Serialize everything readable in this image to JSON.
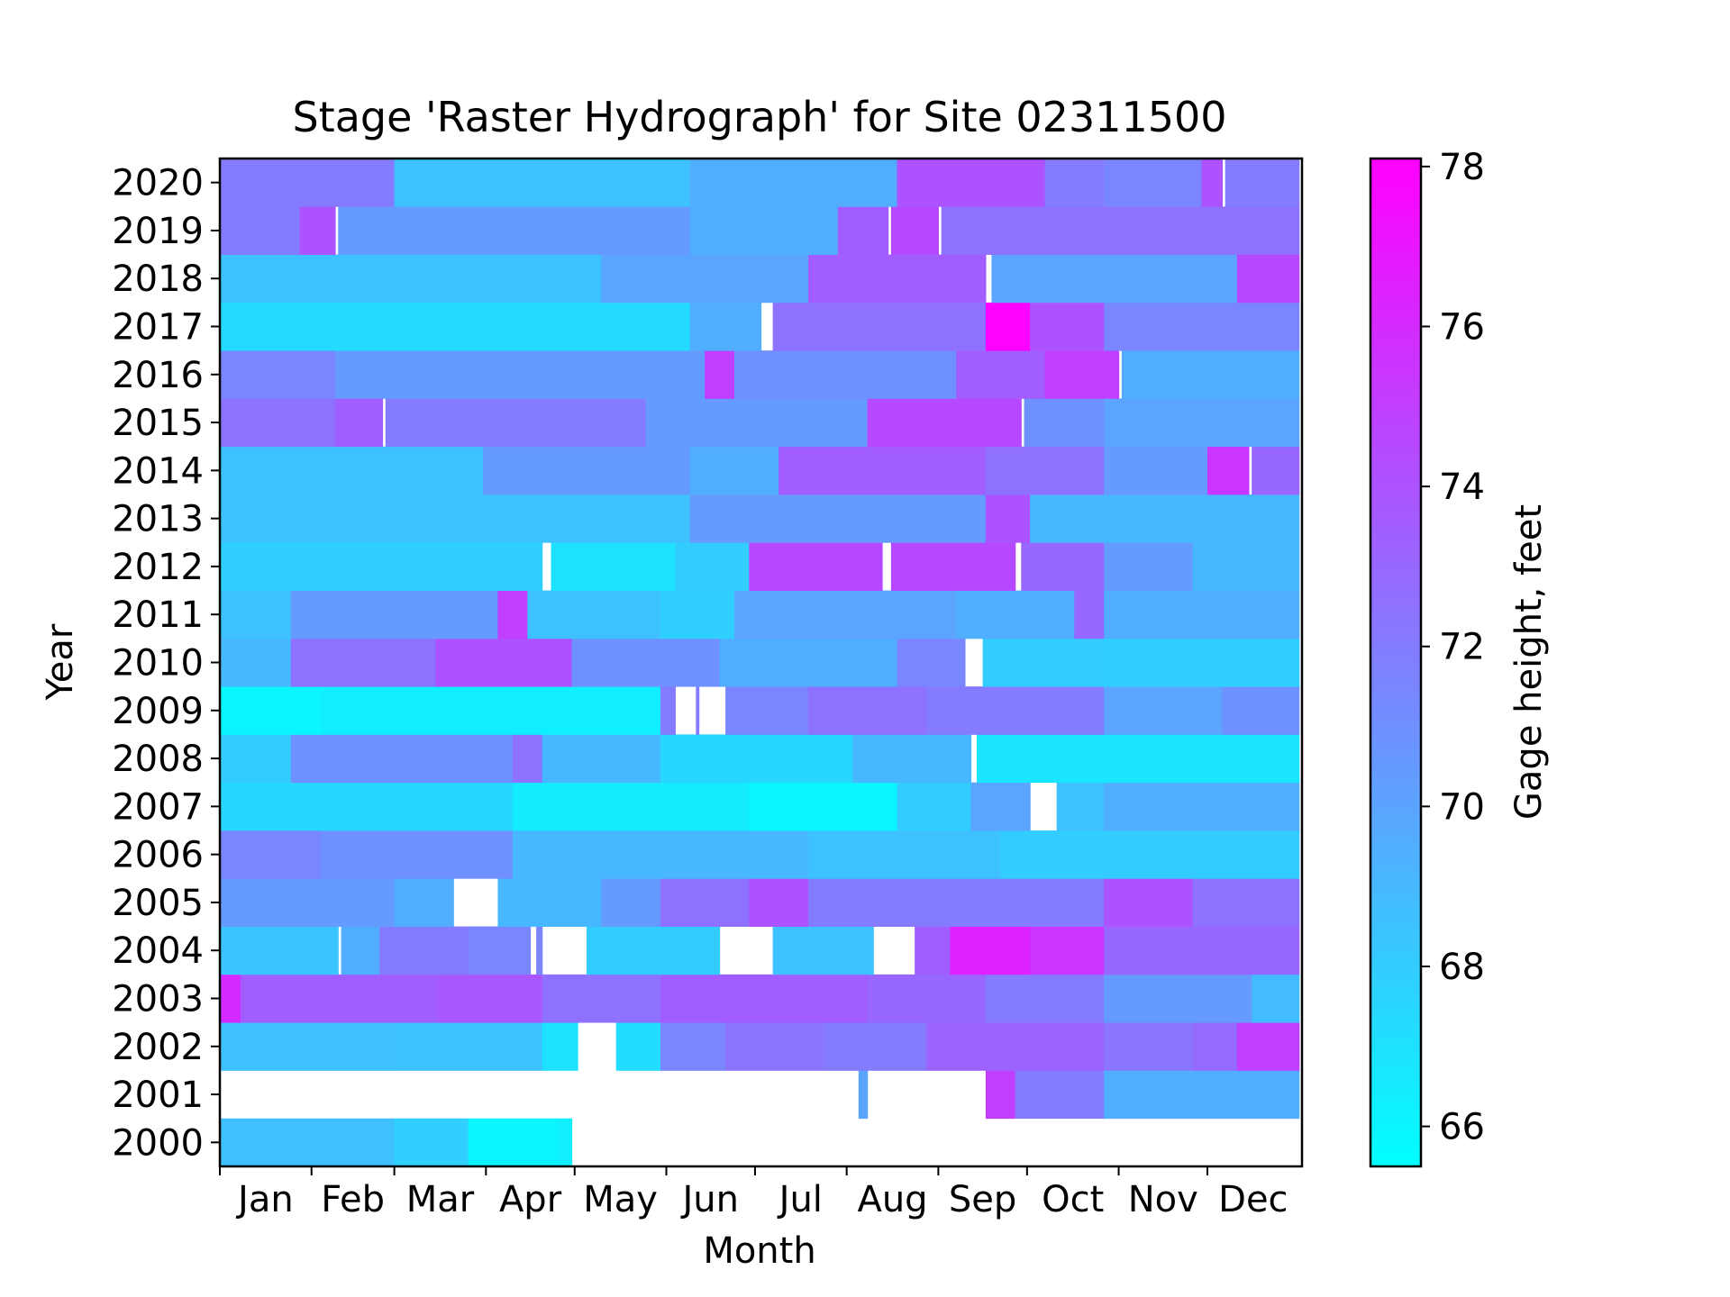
{
  "chart_data": {
    "type": "heatmap",
    "title": "Stage 'Raster Hydrograph' for Site 02311500",
    "xlabel": "Month",
    "ylabel": "Year",
    "colorbar_label": "Gage height, feet",
    "x_tick_labels": [
      "Jan",
      "Feb",
      "Mar",
      "Apr",
      "May",
      "Jun",
      "Jul",
      "Aug",
      "Sep",
      "Oct",
      "Nov",
      "Dec"
    ],
    "years": [
      2000,
      2001,
      2002,
      2003,
      2004,
      2005,
      2006,
      2007,
      2008,
      2009,
      2010,
      2011,
      2012,
      2013,
      2014,
      2015,
      2016,
      2017,
      2018,
      2019,
      2020
    ],
    "colorbar_ticks": [
      66,
      68,
      70,
      72,
      74,
      76,
      78
    ],
    "colorbar_range": [
      65.5,
      78.1
    ],
    "colormap": "cool",
    "colormap_start": "#00ffff",
    "colormap_end": "#ff00ff",
    "gaps_shown_as": "white",
    "value_grid_note": "segments: [start_day_of_year, end_day_of_year, gage_height_ft] (missing data omitted)",
    "rows": {
      "2000": [
        [
          1,
          60,
          68.6
        ],
        [
          60,
          85,
          67.8
        ],
        [
          85,
          115,
          66.0
        ],
        [
          115,
          120,
          66.3
        ]
      ],
      "2001": [
        [
          217,
          220,
          70.0
        ],
        [
          260,
          270,
          75.0
        ],
        [
          270,
          300,
          72.0
        ],
        [
          300,
          366,
          69.5
        ]
      ],
      "2002": [
        [
          1,
          60,
          68.6
        ],
        [
          60,
          110,
          68.5
        ],
        [
          110,
          122,
          67.0
        ],
        [
          135,
          150,
          67.2
        ],
        [
          150,
          172,
          71.5
        ],
        [
          172,
          205,
          72.4
        ],
        [
          205,
          240,
          72.0
        ],
        [
          240,
          300,
          73.2
        ],
        [
          300,
          330,
          72.3
        ],
        [
          330,
          345,
          72.8
        ],
        [
          345,
          366,
          75.0
        ]
      ],
      "2003": [
        [
          1,
          8,
          76.0
        ],
        [
          8,
          75,
          73.5
        ],
        [
          75,
          110,
          73.8
        ],
        [
          110,
          150,
          72.5
        ],
        [
          150,
          220,
          73.5
        ],
        [
          220,
          260,
          73.0
        ],
        [
          260,
          300,
          72.0
        ],
        [
          300,
          350,
          70.5
        ],
        [
          350,
          366,
          68.8
        ]
      ],
      "2004": [
        [
          1,
          40,
          68.4
        ],
        [
          40,
          41,
          68.4
        ],
        [
          42,
          55,
          69.5
        ],
        [
          55,
          85,
          72.0
        ],
        [
          85,
          106,
          71.5
        ],
        [
          108,
          110,
          71.5
        ],
        [
          125,
          170,
          68.0
        ],
        [
          188,
          222,
          68.5
        ],
        [
          236,
          248,
          73.5
        ],
        [
          248,
          275,
          76.5
        ],
        [
          275,
          300,
          75.5
        ],
        [
          300,
          366,
          73.0
        ]
      ],
      "2005": [
        [
          1,
          60,
          70.5
        ],
        [
          60,
          80,
          69.5
        ],
        [
          95,
          130,
          69.0
        ],
        [
          130,
          150,
          70.5
        ],
        [
          150,
          180,
          72.5
        ],
        [
          180,
          200,
          74.0
        ],
        [
          200,
          300,
          72.0
        ],
        [
          300,
          330,
          74.0
        ],
        [
          330,
          366,
          72.5
        ]
      ],
      "2006": [
        [
          1,
          35,
          71.5
        ],
        [
          35,
          100,
          71.0
        ],
        [
          100,
          200,
          69.0
        ],
        [
          200,
          265,
          68.5
        ],
        [
          265,
          366,
          68.0
        ]
      ],
      "2007": [
        [
          1,
          100,
          67.5
        ],
        [
          100,
          180,
          66.5
        ],
        [
          180,
          230,
          66.0
        ],
        [
          230,
          255,
          68.0
        ],
        [
          255,
          275,
          70.0
        ],
        [
          284,
          300,
          68.5
        ],
        [
          300,
          366,
          69.5
        ]
      ],
      "2008": [
        [
          1,
          25,
          68.0
        ],
        [
          25,
          100,
          71.0
        ],
        [
          100,
          110,
          72.5
        ],
        [
          110,
          150,
          69.0
        ],
        [
          150,
          215,
          67.5
        ],
        [
          215,
          255,
          69.0
        ],
        [
          257,
          366,
          66.8
        ]
      ],
      "2009": [
        [
          1,
          35,
          66.0
        ],
        [
          35,
          150,
          66.3
        ],
        [
          150,
          155,
          72.0
        ],
        [
          162,
          163,
          72.0
        ],
        [
          172,
          200,
          71.5
        ],
        [
          200,
          240,
          72.5
        ],
        [
          240,
          300,
          72.0
        ],
        [
          300,
          340,
          70.0
        ],
        [
          340,
          366,
          71.0
        ]
      ],
      "2010": [
        [
          1,
          25,
          69.0
        ],
        [
          25,
          74,
          72.5
        ],
        [
          74,
          120,
          74.0
        ],
        [
          120,
          170,
          71.0
        ],
        [
          170,
          230,
          69.5
        ],
        [
          230,
          253,
          71.5
        ],
        [
          259,
          300,
          68.0
        ],
        [
          300,
          366,
          67.8
        ]
      ],
      "2011": [
        [
          1,
          25,
          68.5
        ],
        [
          25,
          95,
          70.5
        ],
        [
          95,
          105,
          75.0
        ],
        [
          105,
          150,
          68.5
        ],
        [
          150,
          175,
          67.8
        ],
        [
          175,
          250,
          70.0
        ],
        [
          250,
          290,
          69.5
        ],
        [
          290,
          300,
          73.0
        ],
        [
          300,
          366,
          69.5
        ]
      ],
      "2012": [
        [
          1,
          110,
          67.8
        ],
        [
          113,
          155,
          67.0
        ],
        [
          155,
          180,
          68.0
        ],
        [
          180,
          225,
          74.5
        ],
        [
          228,
          270,
          74.5
        ],
        [
          272,
          300,
          73.0
        ],
        [
          300,
          330,
          70.5
        ],
        [
          330,
          366,
          69.0
        ]
      ],
      "2013": [
        [
          1,
          160,
          68.5
        ],
        [
          160,
          260,
          70.5
        ],
        [
          260,
          275,
          74.0
        ],
        [
          275,
          366,
          69.0
        ]
      ],
      "2014": [
        [
          1,
          90,
          68.5
        ],
        [
          90,
          160,
          70.5
        ],
        [
          160,
          190,
          69.5
        ],
        [
          190,
          260,
          73.5
        ],
        [
          260,
          300,
          72.5
        ],
        [
          300,
          335,
          70.5
        ],
        [
          335,
          349,
          75.5
        ],
        [
          350,
          366,
          73.0
        ]
      ],
      "2015": [
        [
          1,
          40,
          72.5
        ],
        [
          40,
          56,
          73.5
        ],
        [
          57,
          145,
          72.0
        ],
        [
          145,
          220,
          70.5
        ],
        [
          220,
          272,
          74.5
        ],
        [
          273,
          300,
          71.0
        ],
        [
          300,
          366,
          70.0
        ]
      ],
      "2016": [
        [
          1,
          40,
          71.5
        ],
        [
          40,
          165,
          70.5
        ],
        [
          165,
          175,
          75.0
        ],
        [
          175,
          250,
          71.0
        ],
        [
          250,
          280,
          73.5
        ],
        [
          280,
          305,
          75.0
        ],
        [
          306,
          366,
          69.5
        ]
      ],
      "2017": [
        [
          1,
          160,
          67.3
        ],
        [
          160,
          184,
          69.5
        ],
        [
          188,
          260,
          72.5
        ],
        [
          260,
          275,
          78.0
        ],
        [
          275,
          300,
          74.0
        ],
        [
          300,
          366,
          71.5
        ]
      ],
      "2018": [
        [
          1,
          130,
          68.5
        ],
        [
          130,
          200,
          70.0
        ],
        [
          200,
          260,
          73.5
        ],
        [
          262,
          345,
          70.0
        ],
        [
          345,
          366,
          74.5
        ]
      ],
      "2019": [
        [
          1,
          28,
          72.0
        ],
        [
          28,
          40,
          74.0
        ],
        [
          41,
          160,
          70.5
        ],
        [
          160,
          210,
          69.5
        ],
        [
          210,
          227,
          73.5
        ],
        [
          228,
          244,
          74.5
        ],
        [
          245,
          366,
          72.5
        ]
      ],
      "2020": [
        [
          1,
          60,
          72.0
        ],
        [
          60,
          160,
          68.5
        ],
        [
          160,
          230,
          69.5
        ],
        [
          230,
          280,
          74.0
        ],
        [
          280,
          300,
          72.0
        ],
        [
          300,
          333,
          71.5
        ],
        [
          333,
          340,
          74.0
        ],
        [
          341,
          366,
          72.0
        ]
      ]
    }
  }
}
